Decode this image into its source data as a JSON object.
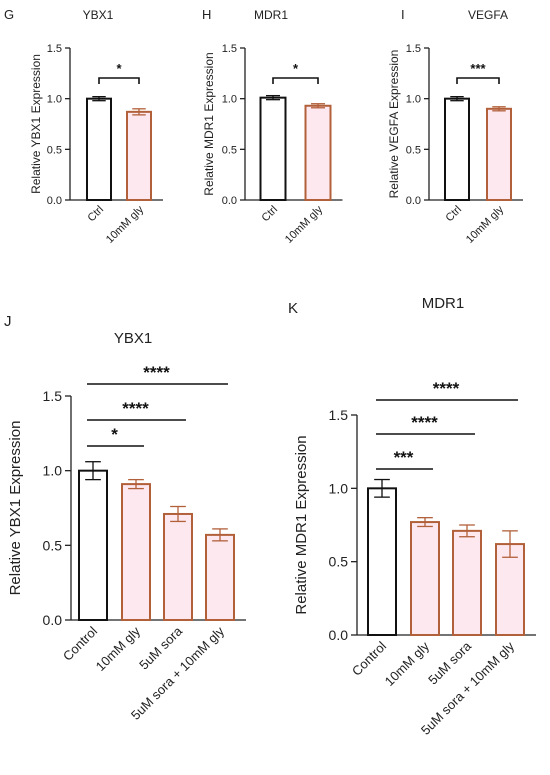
{
  "colors": {
    "control_edge": "#111111",
    "treated_edge": "#b2603a",
    "treated_fill": "#fde8ef",
    "control_fill": "#ffffff"
  },
  "chart_data": [
    {
      "id": "G",
      "panel_letter": "G",
      "type": "bar",
      "title": "YBX1",
      "ylabel": "Relative YBX1 Expression",
      "categories": [
        "Ctrl",
        "10mM gly"
      ],
      "values": [
        1.0,
        0.87
      ],
      "errors": [
        0.02,
        0.03
      ],
      "ylim": [
        0,
        1.5
      ],
      "yticks": [
        "0.0",
        "0.5",
        "1.0",
        "1.5"
      ],
      "comparisons": [
        {
          "from": 0,
          "to": 1,
          "label": "*"
        }
      ],
      "grid": false
    },
    {
      "id": "H",
      "panel_letter": "H",
      "type": "bar",
      "title": "MDR1",
      "ylabel": "Relative MDR1 Expression",
      "categories": [
        "Ctrl",
        "10mM gly"
      ],
      "values": [
        1.01,
        0.93
      ],
      "errors": [
        0.02,
        0.02
      ],
      "ylim": [
        0,
        1.5
      ],
      "yticks": [
        "0.0",
        "0.5",
        "1.0",
        "1.5"
      ],
      "comparisons": [
        {
          "from": 0,
          "to": 1,
          "label": "*"
        }
      ],
      "grid": false
    },
    {
      "id": "I",
      "panel_letter": "I",
      "type": "bar",
      "title": "VEGFA",
      "ylabel": "Relative VEGFA Expression",
      "categories": [
        "Ctrl",
        "10mM gly"
      ],
      "values": [
        1.0,
        0.9
      ],
      "errors": [
        0.02,
        0.02
      ],
      "ylim": [
        0,
        1.5
      ],
      "yticks": [
        "0.0",
        "0.5",
        "1.0",
        "1.5"
      ],
      "comparisons": [
        {
          "from": 0,
          "to": 1,
          "label": "***"
        }
      ],
      "grid": false
    },
    {
      "id": "J",
      "panel_letter": "J",
      "type": "bar",
      "title": "YBX1",
      "ylabel": "Relative YBX1 Expression",
      "categories": [
        "Control",
        "10mM gly",
        "5uM sora",
        "5uM sora + 10mM gly"
      ],
      "values": [
        1.0,
        0.91,
        0.71,
        0.57
      ],
      "errors": [
        0.06,
        0.03,
        0.05,
        0.04
      ],
      "ylim": [
        0,
        1.5
      ],
      "yticks": [
        "0.0",
        "0.5",
        "1.0",
        "1.5"
      ],
      "comparisons": [
        {
          "from": 0,
          "to": 1,
          "label": "*"
        },
        {
          "from": 0,
          "to": 2,
          "label": "****"
        },
        {
          "from": 0,
          "to": 3,
          "label": "****"
        }
      ],
      "grid": false
    },
    {
      "id": "K",
      "panel_letter": "K",
      "type": "bar",
      "title": "MDR1",
      "ylabel": "Relative MDR1 Expression",
      "categories": [
        "Control",
        "10mM gly",
        "5uM sora",
        "5uM sora + 10mM gly"
      ],
      "values": [
        1.0,
        0.77,
        0.71,
        0.62
      ],
      "errors": [
        0.06,
        0.03,
        0.04,
        0.09
      ],
      "ylim": [
        0,
        1.5
      ],
      "yticks": [
        "0.0",
        "0.5",
        "1.0",
        "1.5"
      ],
      "comparisons": [
        {
          "from": 0,
          "to": 1,
          "label": "***"
        },
        {
          "from": 0,
          "to": 2,
          "label": "****"
        },
        {
          "from": 0,
          "to": 3,
          "label": "****"
        }
      ],
      "grid": false
    }
  ]
}
